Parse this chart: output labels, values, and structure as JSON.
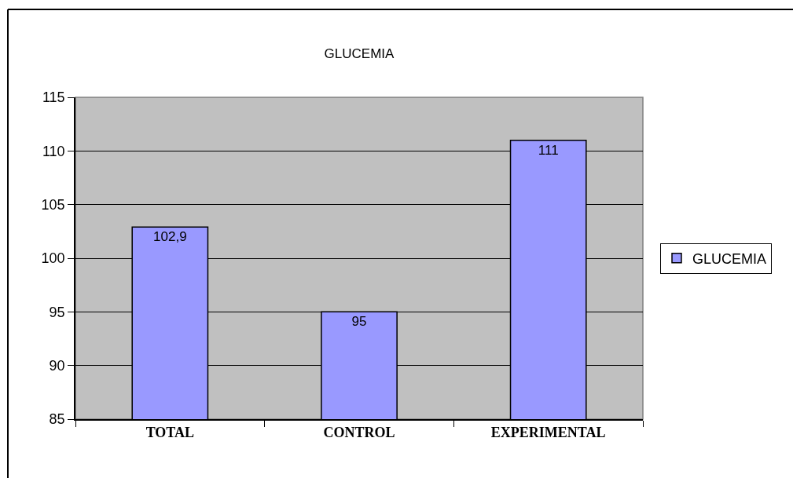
{
  "chart_data": {
    "type": "bar",
    "title": "GLUCEMIA",
    "categories": [
      "TOTAL",
      "CONTROL",
      "EXPERIMENTAL"
    ],
    "series": [
      {
        "name": "GLUCEMIA",
        "color": "#9999ff",
        "values": [
          102.9,
          95,
          111
        ],
        "value_labels": [
          "102,9",
          "95",
          "111"
        ]
      }
    ],
    "ylim": [
      85,
      115
    ],
    "yticks": [
      85,
      90,
      95,
      100,
      105,
      110,
      115
    ],
    "grid": "y",
    "legend": "right"
  }
}
